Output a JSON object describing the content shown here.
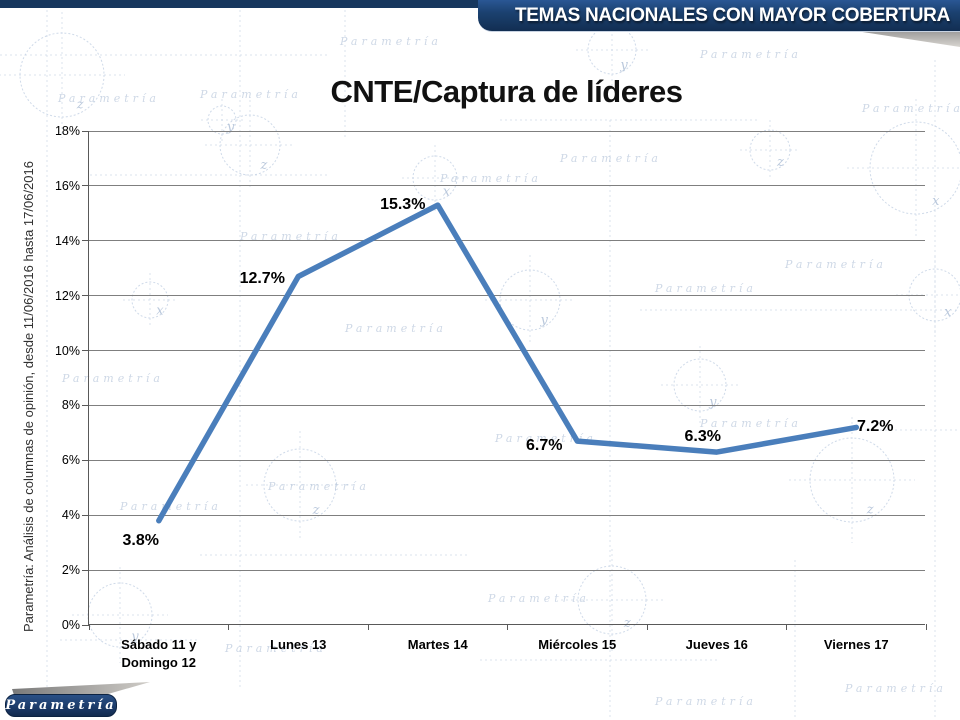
{
  "banner": {
    "title": "TEMAS NACIONALES CON MAYOR COBERTURA"
  },
  "side_note": "Parametría: Análisis de columnas de opinión, desde 11/06/2016 hasta 17/06/2016",
  "logo": {
    "text": "Parametría"
  },
  "watermark_text": "Parametría",
  "colors": {
    "banner_navy": "#17375e",
    "line_blue": "#4a7ebb",
    "gridline_gray": "#7f7f7f",
    "axis_gray": "#595959",
    "watermark_blue": "#aebfd6"
  },
  "chart_data": {
    "type": "line",
    "title": "CNTE/Captura de líderes",
    "categories": [
      "Sábado 11 y\nDomingo 12",
      "Lunes 13",
      "Martes 14",
      "Miércoles 15",
      "Jueves 16",
      "Viernes 17"
    ],
    "values": [
      3.8,
      12.7,
      15.3,
      6.7,
      6.3,
      7.2
    ],
    "point_labels": [
      "3.8%",
      "12.7%",
      "15.3%",
      "6.7%",
      "6.3%",
      "7.2%"
    ],
    "xlabel": "",
    "ylabel": "",
    "ylim": [
      0,
      18
    ],
    "ytick_step": 2,
    "ytick_suffix": "%",
    "grid": true,
    "legend": "none",
    "line_color": "#4a7ebb"
  }
}
